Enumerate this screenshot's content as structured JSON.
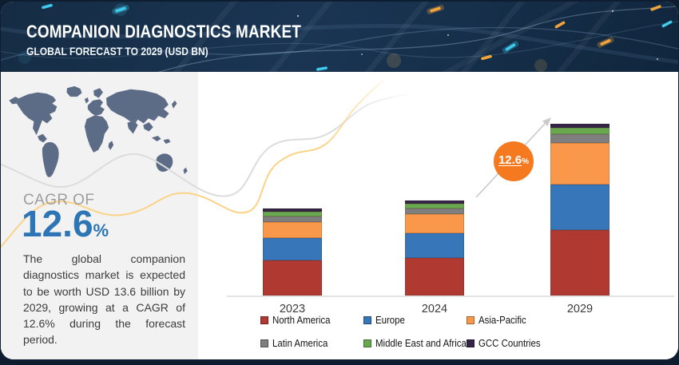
{
  "frame_color": "#0e1d30",
  "header": {
    "title": "COMPANION DIAGNOSTICS MARKET",
    "subtitle": "GLOBAL FORECAST TO 2029 (USD BN)"
  },
  "sidebar": {
    "cagr_label": "CAGR OF",
    "cagr_value": "12.6",
    "cagr_percent_sign": "%",
    "cagr_color": "#2e75b5",
    "description": "The global companion diagnostics market is expected to be worth USD 13.6 billion by 2029, growing at a CAGR of 12.6% during the forecast period."
  },
  "chart": {
    "growth_badge": {
      "value": "12.6",
      "percent_sign": "%",
      "color": "#f4791f"
    }
  },
  "chart_data": {
    "type": "bar",
    "stacked": true,
    "title": "Companion Diagnostics Market",
    "subtitle": "Global Forecast to 2029 (USD BN)",
    "unit": "USD billion",
    "categories": [
      "2023",
      "2024",
      "2029"
    ],
    "series": [
      {
        "name": "North America",
        "color": "#b03a32",
        "values": [
          2.8,
          3.0,
          5.2
        ]
      },
      {
        "name": "Europe",
        "color": "#3777b9",
        "values": [
          1.8,
          2.0,
          3.6
        ]
      },
      {
        "name": "Asia-Pacific",
        "color": "#f9984a",
        "values": [
          1.3,
          1.5,
          3.3
        ]
      },
      {
        "name": "Latin America",
        "color": "#7f7f7f",
        "values": [
          0.45,
          0.45,
          0.7
        ]
      },
      {
        "name": "Middle East and Africa",
        "color": "#69a84f",
        "values": [
          0.4,
          0.4,
          0.5
        ]
      },
      {
        "name": "GCC Countries",
        "color": "#342447",
        "values": [
          0.25,
          0.25,
          0.3
        ]
      }
    ],
    "totals": {
      "2023": 7.0,
      "2024": 7.6,
      "2029": 13.6
    },
    "cagr_percent": 12.6,
    "value_axis_visible": false,
    "grid": false,
    "legend_position": "bottom"
  }
}
